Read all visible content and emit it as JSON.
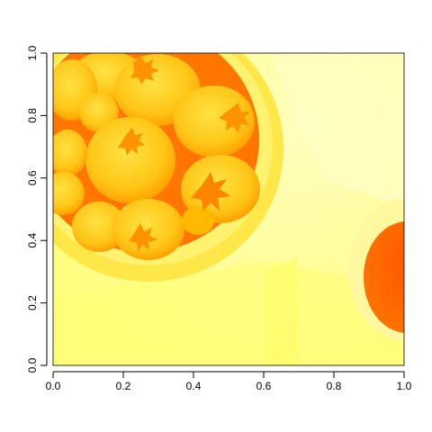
{
  "chart_data": {
    "type": "heatmap",
    "title": "",
    "xlabel": "",
    "ylabel": "",
    "xlim": [
      0.0,
      1.0
    ],
    "ylim": [
      0.0,
      1.0
    ],
    "x_ticks": [
      "0.0",
      "0.2",
      "0.4",
      "0.6",
      "0.8",
      "1.0"
    ],
    "y_ticks": [
      "0.0",
      "0.2",
      "0.4",
      "0.6",
      "0.8",
      "1.0"
    ],
    "x_tick_values": [
      0.0,
      0.2,
      0.4,
      0.6,
      0.8,
      1.0
    ],
    "y_tick_values": [
      0.0,
      0.2,
      0.4,
      0.6,
      0.8,
      1.0
    ],
    "grid": false,
    "legend": "none",
    "colormap": "heat",
    "colors": {
      "background_pale": "#ffff9a",
      "background_light": "#ffffc8",
      "strawberry": "#ffc81e",
      "strawberry_dark": "#ffa000",
      "bowl_interior": "#ff6a00",
      "bowl_rim": "#ffe650",
      "cup_liquid": "#ff5000",
      "axis": "#000000"
    },
    "depicted_image": "bowl of strawberries and a cup of tea"
  }
}
